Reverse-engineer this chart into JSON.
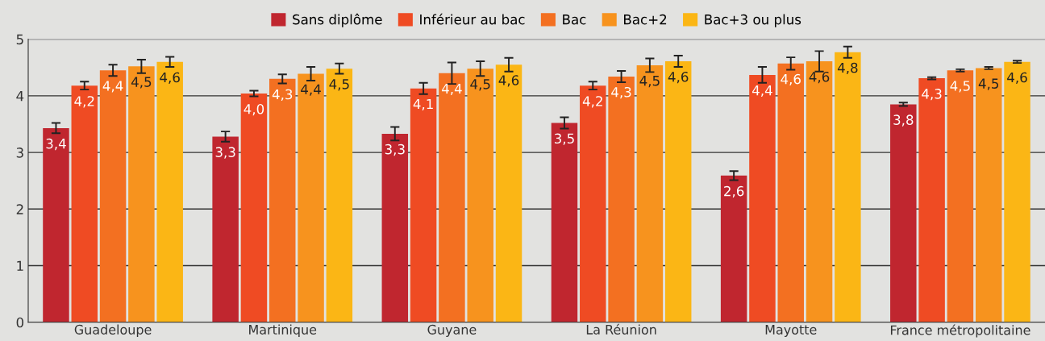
{
  "chart_data": {
    "type": "bar",
    "categories": [
      "Guadeloupe",
      "Martinique",
      "Guyane",
      "La Réunion",
      "Mayotte",
      "France métropolitaine"
    ],
    "series": [
      {
        "name": "Sans diplôme",
        "color": "#c0262f",
        "values": [
          3.43,
          3.28,
          3.33,
          3.52,
          2.59,
          3.85
        ],
        "errors": [
          0.09,
          0.09,
          0.12,
          0.1,
          0.08,
          0.03
        ],
        "value_labels": [
          "3,4",
          "3,3",
          "3,3",
          "3,5",
          "2,6",
          "3,8"
        ]
      },
      {
        "name": "Inférieur au bac",
        "color": "#ef4b23",
        "values": [
          4.18,
          4.04,
          4.13,
          4.18,
          4.37,
          4.31
        ],
        "errors": [
          0.07,
          0.05,
          0.1,
          0.07,
          0.14,
          0.02
        ],
        "value_labels": [
          "4,2",
          "4,0",
          "4,1",
          "4,2",
          "4,4",
          "4,3"
        ]
      },
      {
        "name": "Bac",
        "color": "#f37021",
        "values": [
          4.45,
          4.3,
          4.4,
          4.34,
          4.57,
          4.45
        ],
        "errors": [
          0.1,
          0.08,
          0.19,
          0.1,
          0.11,
          0.02
        ],
        "value_labels": [
          "4,4",
          "4,3",
          "4,4",
          "4,3",
          "4,6",
          "4,5"
        ]
      },
      {
        "name": "Bac+2",
        "color": "#f7931e",
        "values": [
          4.52,
          4.39,
          4.48,
          4.54,
          4.61,
          4.49
        ],
        "errors": [
          0.12,
          0.12,
          0.13,
          0.12,
          0.18,
          0.02
        ],
        "value_labels": [
          "4,5",
          "4,4",
          "4,5",
          "4,5",
          "4,6",
          "4,5"
        ]
      },
      {
        "name": "Bac+3 ou plus",
        "color": "#fbb615",
        "values": [
          4.6,
          4.48,
          4.55,
          4.61,
          4.77,
          4.6
        ],
        "errors": [
          0.09,
          0.09,
          0.12,
          0.1,
          0.1,
          0.02
        ],
        "value_labels": [
          "4,6",
          "4,5",
          "4,6",
          "4,6",
          "4,8",
          "4,6"
        ]
      }
    ],
    "ylim": [
      0,
      5
    ],
    "yticks": [
      0,
      1,
      2,
      3,
      4,
      5
    ],
    "grid": "y",
    "legend": "top"
  }
}
